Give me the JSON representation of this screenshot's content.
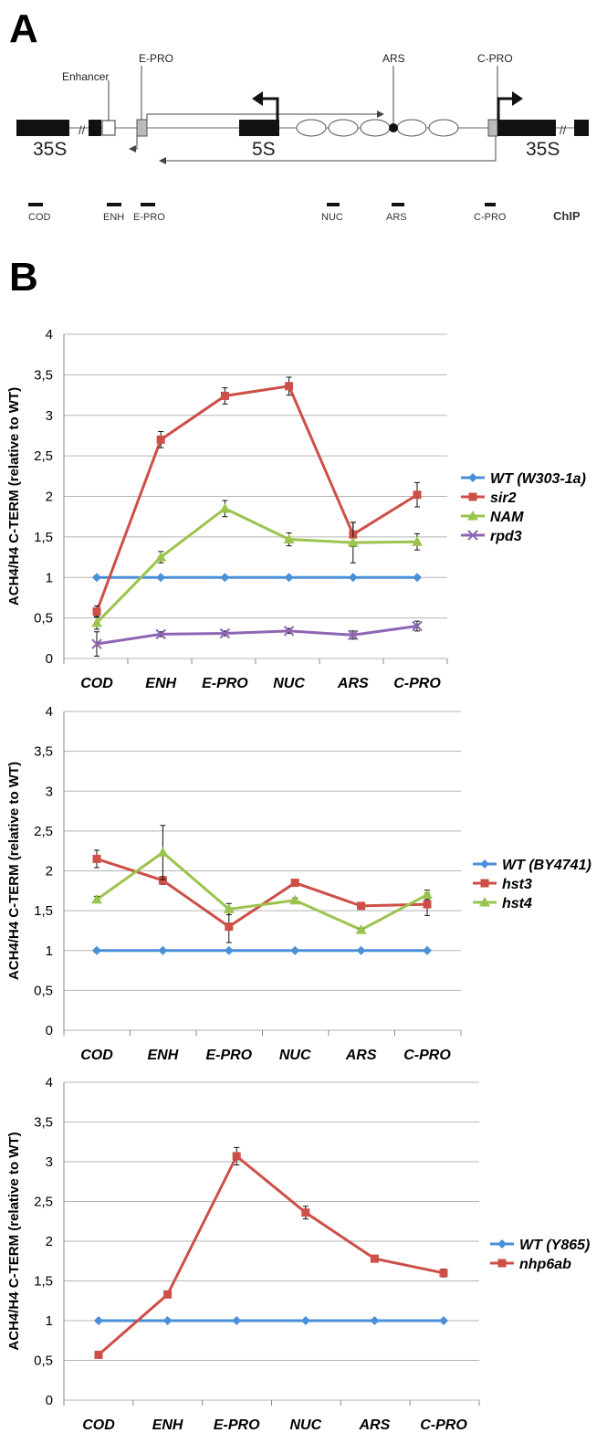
{
  "panel_a": {
    "letter": "A",
    "labels": {
      "enhancer": "Enhancer",
      "e_pro": "E-PRO",
      "ars": "ARS",
      "c_pro": "C-PRO",
      "gene_35s_left": "35S",
      "gene_5s": "5S",
      "gene_35s_right": "35S"
    },
    "chip_regions": [
      "COD",
      "ENH",
      "E-PRO",
      "NUC",
      "ARS",
      "C-PRO"
    ],
    "chip_title": "ChIP"
  },
  "panel_b": {
    "letter": "B"
  },
  "chart_data": [
    {
      "type": "line",
      "title": "",
      "xlabel": "",
      "ylabel": "ACH4/H4 C-TERM (relative to WT)",
      "ylim": [
        0,
        4
      ],
      "yticks": [
        "0",
        "0,5",
        "1",
        "1,5",
        "2",
        "2,5",
        "3",
        "3,5",
        "4"
      ],
      "categories": [
        "COD",
        "ENH",
        "E-PRO",
        "NUC",
        "ARS",
        "C-PRO"
      ],
      "grid": true,
      "legend_position": "right",
      "series": [
        {
          "name": "WT (W303-1a)",
          "color": "#4a8fd8",
          "marker": "diamond",
          "values": [
            1,
            1,
            1,
            1,
            1,
            1
          ],
          "errors": [
            0,
            0,
            0,
            0,
            0,
            0
          ]
        },
        {
          "name": "sir2",
          "color": "#cd4f47",
          "marker": "square",
          "values": [
            0.58,
            2.7,
            3.24,
            3.36,
            1.53,
            2.02
          ],
          "errors": [
            0.07,
            0.1,
            0.1,
            0.11,
            0.15,
            0.15
          ]
        },
        {
          "name": "NAM",
          "color": "#9bc44e",
          "marker": "triangle",
          "values": [
            0.44,
            1.25,
            1.85,
            1.47,
            1.43,
            1.44
          ],
          "errors": [
            0.08,
            0.07,
            0.1,
            0.08,
            0.25,
            0.1
          ]
        },
        {
          "name": "rpd3",
          "color": "#8e65b3",
          "marker": "cross",
          "values": [
            0.18,
            0.3,
            0.31,
            0.34,
            0.29,
            0.4
          ],
          "errors": [
            0.15,
            0.03,
            0.03,
            0.03,
            0.05,
            0.06
          ]
        }
      ]
    },
    {
      "type": "line",
      "title": "",
      "xlabel": "",
      "ylabel": "ACH4/H4 C-TERM (relative to WT)",
      "ylim": [
        0,
        4
      ],
      "yticks": [
        "0",
        "0,5",
        "1",
        "1,5",
        "2",
        "2,5",
        "3",
        "3,5",
        "4"
      ],
      "categories": [
        "COD",
        "ENH",
        "E-PRO",
        "NUC",
        "ARS",
        "C-PRO"
      ],
      "grid": true,
      "legend_position": "right",
      "series": [
        {
          "name": "WT (BY4741)",
          "color": "#4a8fd8",
          "marker": "diamond",
          "values": [
            1,
            1,
            1,
            1,
            1,
            1
          ],
          "errors": [
            0,
            0,
            0,
            0,
            0,
            0
          ]
        },
        {
          "name": "hst3",
          "color": "#cd4f47",
          "marker": "square",
          "values": [
            2.15,
            1.88,
            1.3,
            1.85,
            1.56,
            1.58
          ],
          "errors": [
            0.11,
            0.05,
            0.2,
            0.03,
            0.03,
            0.14
          ]
        },
        {
          "name": "hst4",
          "color": "#9bc44e",
          "marker": "triangle",
          "values": [
            1.64,
            2.23,
            1.52,
            1.63,
            1.26,
            1.7
          ],
          "errors": [
            0.04,
            0.34,
            0.07,
            0.03,
            0.02,
            0.06
          ]
        }
      ]
    },
    {
      "type": "line",
      "title": "",
      "xlabel": "",
      "ylabel": "ACH4/H4 C-TERM (relative to WT)",
      "ylim": [
        0,
        4
      ],
      "yticks": [
        "0",
        "0,5",
        "1",
        "1,5",
        "2",
        "2,5",
        "3",
        "3,5",
        "4"
      ],
      "categories": [
        "COD",
        "ENH",
        "E-PRO",
        "NUC",
        "ARS",
        "C-PRO"
      ],
      "grid": true,
      "legend_position": "right",
      "series": [
        {
          "name": "WT (Y865)",
          "color": "#4a8fd8",
          "marker": "diamond",
          "values": [
            1,
            1,
            1,
            1,
            1,
            1
          ],
          "errors": [
            0,
            0,
            0,
            0,
            0,
            0
          ]
        },
        {
          "name": "nhp6ab",
          "color": "#cd4f47",
          "marker": "square",
          "values": [
            0.57,
            1.33,
            3.07,
            2.36,
            1.78,
            1.6
          ],
          "errors": [
            0.02,
            0.04,
            0.11,
            0.08,
            0.03,
            0.05
          ]
        }
      ]
    }
  ]
}
